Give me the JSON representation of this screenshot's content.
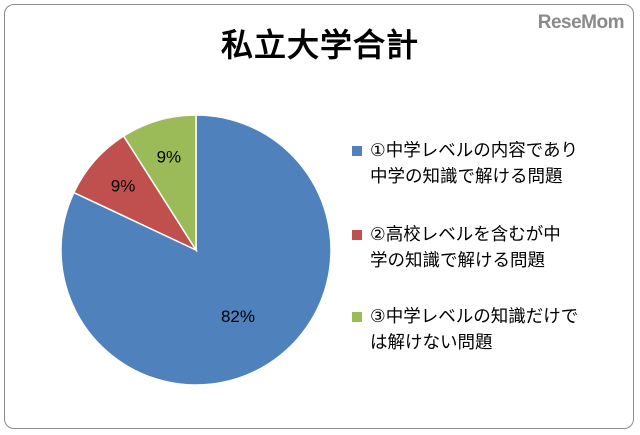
{
  "watermark": "ReseMom",
  "colors": {
    "series": [
      "#4f81bd",
      "#c0504d",
      "#9bbb59"
    ],
    "slice_border": "#ffffff"
  },
  "chart_data": {
    "type": "pie",
    "title": "私立大学合計",
    "categories": [
      "①中学レベルの内容であり中学の知識で解ける問題",
      "②高校レベルを含むが中学の知識で解ける問題",
      "③中学レベルの知識だけでは解けない問題"
    ],
    "legend_lines": [
      "①中学レベルの内容であり\n中学の知識で解ける問題",
      "②高校レベルを含むが中\n学の知識で解ける問題",
      "③中学レベルの知識だけで\nは解けない問題"
    ],
    "values": [
      82,
      9,
      9
    ],
    "data_labels": [
      "82%",
      "9%",
      "9%"
    ],
    "legend_position": "right"
  }
}
